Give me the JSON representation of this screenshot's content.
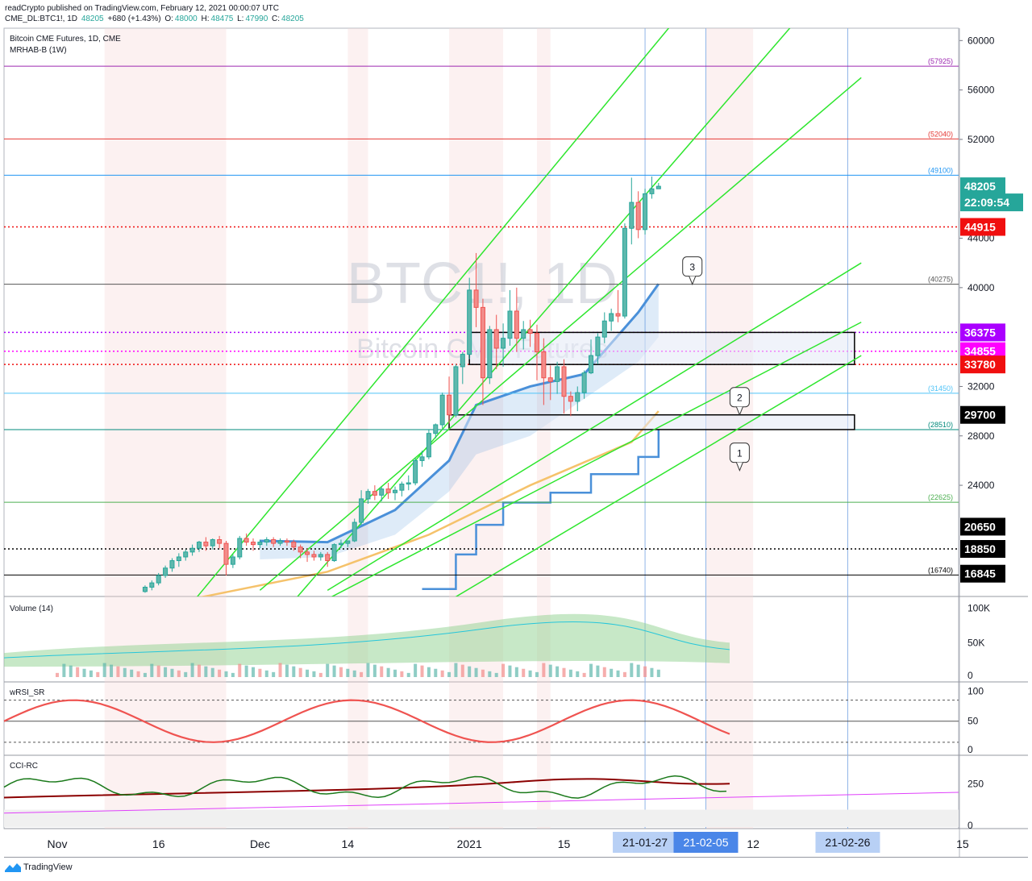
{
  "header": {
    "publisher": "readCrypto published on TradingView.com, February 12, 2021 00:00:07 UTC",
    "symbol": "CME_DL:BTC1!, 1D",
    "last": "48205",
    "change": "+680 (+1.43%)",
    "ohlc": [
      {
        "k": "O:",
        "v": "48000"
      },
      {
        "k": "H:",
        "v": "48475"
      },
      {
        "k": "L:",
        "v": "47990"
      },
      {
        "k": "C:",
        "v": "48205"
      }
    ]
  },
  "chart_data": {
    "type": "candlestick",
    "title": "Bitcoin CME Futures, 1D, CME",
    "indicator": "MRHAB-B (1W)",
    "watermark": {
      "symbol": "BTC1!, 1D",
      "name": "Bitcoin CME Futures"
    },
    "price_axis": {
      "min": 15000,
      "max": 61000,
      "ticks": [
        60000,
        56000,
        52000,
        44000,
        40000,
        32000,
        28000,
        24000
      ]
    },
    "price_ticks_labels": [
      "60000",
      "56000",
      "52000",
      "44000",
      "40000",
      "32000",
      "28000",
      "24000"
    ],
    "x_labels": [
      {
        "label": "Nov",
        "day": 0
      },
      {
        "label": "16",
        "day": 15
      },
      {
        "label": "Dec",
        "day": 30
      },
      {
        "label": "14",
        "day": 43
      },
      {
        "label": "2021",
        "day": 61
      },
      {
        "label": "15",
        "day": 75
      },
      {
        "label": "12",
        "day": 103
      },
      {
        "label": "15",
        "day": 134
      }
    ],
    "x_highlight_labels": [
      {
        "label": "21-01-27",
        "day": 87,
        "style": "light"
      },
      {
        "label": "21-02-05",
        "day": 96,
        "style": "dark"
      },
      {
        "label": "21-02-26",
        "day": 117,
        "style": "light"
      }
    ],
    "candles": [
      {
        "d": 13,
        "o": 15400,
        "h": 15900,
        "c": 15750,
        "l": 15300
      },
      {
        "d": 14,
        "o": 15750,
        "h": 16300,
        "c": 16100,
        "l": 15500
      },
      {
        "d": 15,
        "o": 16100,
        "h": 16900,
        "c": 16700,
        "l": 15900
      },
      {
        "d": 16,
        "o": 16700,
        "h": 17500,
        "c": 17300,
        "l": 16500
      },
      {
        "d": 17,
        "o": 17300,
        "h": 18100,
        "c": 17900,
        "l": 17000
      },
      {
        "d": 18,
        "o": 17900,
        "h": 18500,
        "c": 18200,
        "l": 17400
      },
      {
        "d": 19,
        "o": 18200,
        "h": 18800,
        "c": 18600,
        "l": 17900
      },
      {
        "d": 20,
        "o": 18600,
        "h": 19200,
        "c": 18900,
        "l": 18300
      },
      {
        "d": 21,
        "o": 18900,
        "h": 19500,
        "c": 19400,
        "l": 18600
      },
      {
        "d": 22,
        "o": 19400,
        "h": 19800,
        "c": 19100,
        "l": 18700
      },
      {
        "d": 23,
        "o": 19100,
        "h": 19700,
        "c": 19600,
        "l": 18800
      },
      {
        "d": 24,
        "o": 19600,
        "h": 19900,
        "c": 19300,
        "l": 18900
      },
      {
        "d": 25,
        "o": 19300,
        "h": 19500,
        "c": 17600,
        "l": 16700
      },
      {
        "d": 26,
        "o": 17600,
        "h": 18400,
        "c": 18200,
        "l": 17300
      },
      {
        "d": 27,
        "o": 18200,
        "h": 19900,
        "c": 19700,
        "l": 18000
      },
      {
        "d": 28,
        "o": 19700,
        "h": 20100,
        "c": 19400,
        "l": 19100
      },
      {
        "d": 29,
        "o": 19400,
        "h": 19700,
        "c": 19200,
        "l": 18700
      },
      {
        "d": 30,
        "o": 19200,
        "h": 19600,
        "c": 19400,
        "l": 18900
      },
      {
        "d": 31,
        "o": 19400,
        "h": 19800,
        "c": 19600,
        "l": 19100
      },
      {
        "d": 32,
        "o": 19600,
        "h": 19800,
        "c": 19300,
        "l": 19000
      },
      {
        "d": 33,
        "o": 19300,
        "h": 19700,
        "c": 19500,
        "l": 19100
      },
      {
        "d": 34,
        "o": 19500,
        "h": 19700,
        "c": 19400,
        "l": 19100
      },
      {
        "d": 35,
        "o": 19400,
        "h": 19600,
        "c": 19000,
        "l": 18700
      },
      {
        "d": 36,
        "o": 19000,
        "h": 19200,
        "c": 18600,
        "l": 18100
      },
      {
        "d": 37,
        "o": 18600,
        "h": 18900,
        "c": 18400,
        "l": 17800
      },
      {
        "d": 38,
        "o": 18400,
        "h": 18700,
        "c": 18200,
        "l": 17900
      },
      {
        "d": 39,
        "o": 18200,
        "h": 18600,
        "c": 18400,
        "l": 17900
      },
      {
        "d": 40,
        "o": 18400,
        "h": 18600,
        "c": 17900,
        "l": 17400
      },
      {
        "d": 41,
        "o": 17900,
        "h": 19300,
        "c": 19200,
        "l": 17800
      },
      {
        "d": 42,
        "o": 19200,
        "h": 19600,
        "c": 19300,
        "l": 18900
      },
      {
        "d": 43,
        "o": 19300,
        "h": 19500,
        "c": 19500,
        "l": 19000
      },
      {
        "d": 44,
        "o": 19500,
        "h": 21300,
        "c": 21000,
        "l": 19400
      },
      {
        "d": 45,
        "o": 21000,
        "h": 23600,
        "c": 22900,
        "l": 20800
      },
      {
        "d": 46,
        "o": 22900,
        "h": 23700,
        "c": 23500,
        "l": 22500
      },
      {
        "d": 47,
        "o": 23500,
        "h": 24000,
        "c": 23200,
        "l": 22800
      },
      {
        "d": 48,
        "o": 23200,
        "h": 23900,
        "c": 23700,
        "l": 22700
      },
      {
        "d": 49,
        "o": 23700,
        "h": 24200,
        "c": 23400,
        "l": 22900
      },
      {
        "d": 50,
        "o": 23400,
        "h": 23900,
        "c": 23600,
        "l": 22800
      },
      {
        "d": 51,
        "o": 23600,
        "h": 24300,
        "c": 24100,
        "l": 23100
      },
      {
        "d": 52,
        "o": 24100,
        "h": 24800,
        "c": 24200,
        "l": 23600
      },
      {
        "d": 53,
        "o": 24200,
        "h": 26200,
        "c": 26000,
        "l": 24000
      },
      {
        "d": 54,
        "o": 26000,
        "h": 26800,
        "c": 26300,
        "l": 25500
      },
      {
        "d": 55,
        "o": 26300,
        "h": 28500,
        "c": 28200,
        "l": 26100
      },
      {
        "d": 56,
        "o": 28200,
        "h": 29000,
        "c": 28900,
        "l": 27800
      },
      {
        "d": 57,
        "o": 28900,
        "h": 31500,
        "c": 31300,
        "l": 28600
      },
      {
        "d": 58,
        "o": 31300,
        "h": 32800,
        "c": 29700,
        "l": 29000
      },
      {
        "d": 59,
        "o": 29700,
        "h": 33800,
        "c": 33600,
        "l": 29500
      },
      {
        "d": 60,
        "o": 33600,
        "h": 34800,
        "c": 34600,
        "l": 32200
      },
      {
        "d": 61,
        "o": 34600,
        "h": 40800,
        "c": 39800,
        "l": 34200
      },
      {
        "d": 62,
        "o": 39800,
        "h": 42800,
        "c": 38400,
        "l": 36800
      },
      {
        "d": 63,
        "o": 38400,
        "h": 39100,
        "c": 32700,
        "l": 30500
      },
      {
        "d": 64,
        "o": 32700,
        "h": 36900,
        "c": 36600,
        "l": 32200
      },
      {
        "d": 65,
        "o": 36600,
        "h": 37800,
        "c": 35100,
        "l": 33400
      },
      {
        "d": 66,
        "o": 35100,
        "h": 37100,
        "c": 35900,
        "l": 33600
      },
      {
        "d": 67,
        "o": 35900,
        "h": 39800,
        "c": 38100,
        "l": 35300
      },
      {
        "d": 68,
        "o": 38100,
        "h": 40000,
        "c": 35900,
        "l": 34800
      },
      {
        "d": 69,
        "o": 35900,
        "h": 37300,
        "c": 36600,
        "l": 35000
      },
      {
        "d": 70,
        "o": 36600,
        "h": 37400,
        "c": 36300,
        "l": 35200
      },
      {
        "d": 71,
        "o": 36300,
        "h": 37000,
        "c": 34800,
        "l": 32500
      },
      {
        "d": 72,
        "o": 34800,
        "h": 35900,
        "c": 32700,
        "l": 30500
      },
      {
        "d": 73,
        "o": 32700,
        "h": 33700,
        "c": 32400,
        "l": 30900
      },
      {
        "d": 74,
        "o": 32400,
        "h": 34000,
        "c": 33600,
        "l": 31400
      },
      {
        "d": 75,
        "o": 33600,
        "h": 34200,
        "c": 31200,
        "l": 29800
      },
      {
        "d": 76,
        "o": 31200,
        "h": 31600,
        "c": 30800,
        "l": 29600
      },
      {
        "d": 77,
        "o": 30800,
        "h": 32000,
        "c": 31500,
        "l": 30000
      },
      {
        "d": 78,
        "o": 31500,
        "h": 33300,
        "c": 33100,
        "l": 31000
      },
      {
        "d": 79,
        "o": 33100,
        "h": 35800,
        "c": 34500,
        "l": 33000
      },
      {
        "d": 80,
        "o": 34500,
        "h": 36300,
        "c": 36000,
        "l": 33800
      },
      {
        "d": 81,
        "o": 36000,
        "h": 38000,
        "c": 37300,
        "l": 35500
      },
      {
        "d": 82,
        "o": 37300,
        "h": 38300,
        "c": 37900,
        "l": 36500
      },
      {
        "d": 83,
        "o": 37900,
        "h": 39800,
        "c": 37700,
        "l": 37200
      },
      {
        "d": 84,
        "o": 37700,
        "h": 45200,
        "c": 44800,
        "l": 37500
      },
      {
        "d": 85,
        "o": 44800,
        "h": 48900,
        "c": 46900,
        "l": 43500
      },
      {
        "d": 86,
        "o": 46900,
        "h": 47800,
        "c": 44700,
        "l": 44000
      },
      {
        "d": 87,
        "o": 44700,
        "h": 48000,
        "c": 47600,
        "l": 44300
      },
      {
        "d": 88,
        "o": 47600,
        "h": 49000,
        "c": 48000,
        "l": 47200
      },
      {
        "d": 89,
        "o": 48000,
        "h": 48475,
        "c": 48205,
        "l": 47990
      }
    ],
    "horizontal_levels": [
      {
        "value": 57925,
        "label": "(57925)",
        "color": "#9c27b0",
        "style": "solid"
      },
      {
        "value": 52040,
        "label": "(52040)",
        "color": "#e53935",
        "style": "solid"
      },
      {
        "value": 49100,
        "label": "(49100)",
        "color": "#2196f3",
        "style": "solid"
      },
      {
        "value": 40275,
        "label": "(40275)",
        "color": "#555555",
        "style": "solid"
      },
      {
        "value": 31450,
        "label": "(31450)",
        "color": "#4fc3f7",
        "style": "solid"
      },
      {
        "value": 28510,
        "label": "(28510)",
        "color": "#00897b",
        "style": "solid"
      },
      {
        "value": 22625,
        "label": "(22625)",
        "color": "#4caf50",
        "style": "solid"
      },
      {
        "value": 16740,
        "label": "(16740)",
        "color": "#000000",
        "style": "solid"
      }
    ],
    "axis_badges": [
      {
        "value": 48205,
        "label": "48205",
        "bg": "#26a69a",
        "fg": "#ffffff"
      },
      {
        "value": 46900,
        "label": "22:09:54",
        "bg": "#26a69a",
        "fg": "#ffffff"
      },
      {
        "value": 44915,
        "label": "44915",
        "bg": "#f00f0f",
        "fg": "#ffffff"
      },
      {
        "value": 36375,
        "label": "36375",
        "bg": "#aa00ff",
        "fg": "#ffffff"
      },
      {
        "value": 34855,
        "label": "34855",
        "bg": "#ff00ff",
        "fg": "#ffffff"
      },
      {
        "value": 33780,
        "label": "33780",
        "bg": "#f00f0f",
        "fg": "#ffffff"
      },
      {
        "value": 29700,
        "label": "29700",
        "bg": "#000000",
        "fg": "#ffffff"
      },
      {
        "value": 20650,
        "label": "20650",
        "bg": "#000000",
        "fg": "#ffffff"
      },
      {
        "value": 18850,
        "label": "18850",
        "bg": "#000000",
        "fg": "#ffffff"
      },
      {
        "value": 16845,
        "label": "16845",
        "bg": "#000000",
        "fg": "#ffffff"
      }
    ],
    "dotted_levels": [
      {
        "value": 44915,
        "color": "#f00f0f"
      },
      {
        "value": 36375,
        "color": "#aa00ff"
      },
      {
        "value": 34855,
        "color": "#ff00ff"
      },
      {
        "value": 33780,
        "color": "#f00f0f"
      },
      {
        "value": 18850,
        "color": "#000000"
      }
    ],
    "boxes": [
      {
        "from_day": 61,
        "to_day": 118,
        "top": 36375,
        "bottom": 33780
      },
      {
        "from_day": 58,
        "to_day": 118,
        "top": 29700,
        "bottom": 28510
      }
    ],
    "callouts": [
      {
        "label": "3",
        "day": 94,
        "value": 40275
      },
      {
        "label": "2",
        "day": 101,
        "value": 29700
      },
      {
        "label": "1",
        "day": 101,
        "value": 25200
      }
    ],
    "volume": {
      "title": "Volume (14)",
      "ticks": [
        "100K",
        "50K",
        "0"
      ]
    },
    "wrsi": {
      "title": "wRSI_SR",
      "ticks": [
        "100",
        "50",
        "0"
      ]
    },
    "cci": {
      "title": "CCI-RC",
      "ticks": [
        "250",
        "0"
      ]
    },
    "footer": "TradingView"
  }
}
